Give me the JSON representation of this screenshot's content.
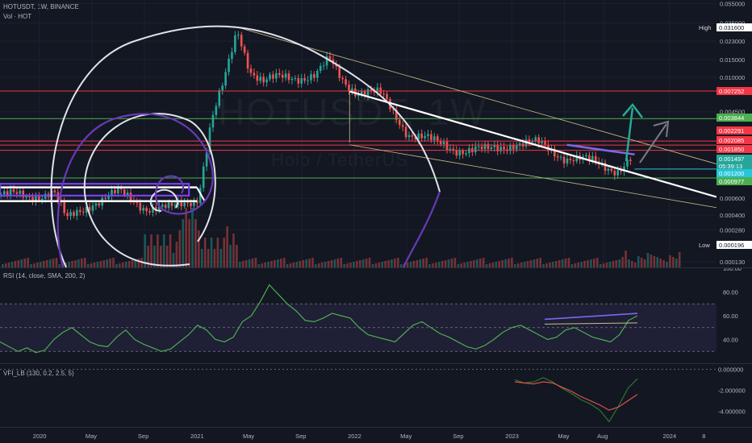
{
  "header": {
    "symbol_line": "HOTUSDT, 1W, BINANCE",
    "volume_label": "Vol · HOT",
    "rsi_label": "RSI (14, close, SMA, 200, 2)",
    "vfi_label": "VFI_LB (130, 0.2, 2.5, 5)"
  },
  "watermark": {
    "ticker": "HOTUSDT, 1W",
    "name": "Holo / TetherUS"
  },
  "colors": {
    "up": "#26a69a",
    "down": "#ef5350",
    "red_level": "#f23645",
    "green_level": "#4caf50",
    "fib_white": "#e0e3eb",
    "fib_purple": "#673ab7",
    "arrow_teal": "#22ab94",
    "arrow_gray": "#787b86",
    "rsi_line": "#4caf50",
    "rsi_divergence": "#7b68ee",
    "price_line": "#26c6da"
  },
  "chart_data": [
    {
      "type": "candlestick",
      "title": "HOTUSDT, 1W, BINANCE",
      "scale": "log",
      "x_ticks": [
        "2020",
        "May",
        "Sep",
        "2021",
        "May",
        "Sep",
        "2022",
        "May",
        "Sep",
        "2023",
        "May",
        "Aug",
        "2024",
        "8"
      ],
      "y_ticks": [
        "0.055000",
        "0.035000",
        "0.023000",
        "0.015000",
        "0.010000",
        "0.004500",
        "0.000600",
        "0.000400",
        "0.000280",
        "0.000130"
      ],
      "price_labels": [
        {
          "text": "High",
          "value": "0.031600"
        },
        {
          "text": "",
          "value": "0.007252"
        },
        {
          "text": "",
          "value": "0.003844"
        },
        {
          "text": "",
          "value": "0.002291"
        },
        {
          "text": "",
          "value": "0.002085"
        },
        {
          "text": "",
          "value": "0.001850"
        },
        {
          "text": "",
          "value": "0.001497"
        },
        {
          "text": "",
          "value": "05:39:13"
        },
        {
          "text": "",
          "value": "0.001200"
        },
        {
          "text": "",
          "value": "0.000977"
        },
        {
          "text": "Low",
          "value": "0.000196"
        }
      ],
      "horizontal_levels": [
        {
          "value": 0.007252,
          "color": "red"
        },
        {
          "value": 0.003844,
          "color": "green"
        },
        {
          "value": 0.002291,
          "color": "red"
        },
        {
          "value": 0.002085,
          "color": "red"
        },
        {
          "value": 0.00185,
          "color": "red"
        },
        {
          "value": 0.000977,
          "color": "green"
        }
      ],
      "close_path": [
        {
          "t": "2019-10",
          "v": 0.00066
        },
        {
          "t": "2019-12",
          "v": 0.00061
        },
        {
          "t": "2020-02",
          "v": 0.00072
        },
        {
          "t": "2020-03",
          "v": 0.00035
        },
        {
          "t": "2020-05",
          "v": 0.00055
        },
        {
          "t": "2020-07",
          "v": 0.00068
        },
        {
          "t": "2020-09",
          "v": 0.00049
        },
        {
          "t": "2020-11",
          "v": 0.00046
        },
        {
          "t": "2021-01",
          "v": 0.00062
        },
        {
          "t": "2021-02",
          "v": 0.0035
        },
        {
          "t": "2021-03",
          "v": 0.0088
        },
        {
          "t": "2021-04",
          "v": 0.03
        },
        {
          "t": "2021-05",
          "v": 0.012
        },
        {
          "t": "2021-06",
          "v": 0.009
        },
        {
          "t": "2021-08",
          "v": 0.01
        },
        {
          "t": "2021-10",
          "v": 0.0105
        },
        {
          "t": "2021-11",
          "v": 0.0145
        },
        {
          "t": "2021-12",
          "v": 0.0095
        },
        {
          "t": "2022-01",
          "v": 0.0075
        },
        {
          "t": "2022-03",
          "v": 0.0065
        },
        {
          "t": "2022-05",
          "v": 0.0028
        },
        {
          "t": "2022-07",
          "v": 0.0022
        },
        {
          "t": "2022-09",
          "v": 0.0019
        },
        {
          "t": "2022-11",
          "v": 0.0018
        },
        {
          "t": "2023-01",
          "v": 0.0022
        },
        {
          "t": "2023-03",
          "v": 0.0021
        },
        {
          "t": "2023-05",
          "v": 0.0016
        },
        {
          "t": "2023-07",
          "v": 0.0014
        },
        {
          "t": "2023-09",
          "v": 0.0012
        },
        {
          "t": "2023-10",
          "v": 0.0015
        }
      ]
    },
    {
      "type": "line",
      "title": "RSI (14, close, SMA, 200, 2)",
      "y_ticks": [
        "100.00",
        "80.00",
        "60.00",
        "40.00"
      ],
      "ylim": [
        20,
        100
      ],
      "bands": [
        30,
        50,
        70
      ],
      "series": [
        {
          "values": [
            38,
            34,
            30,
            33,
            29,
            31,
            40,
            46,
            50,
            44,
            38,
            35,
            34,
            42,
            48,
            40,
            36,
            33,
            30,
            32,
            38,
            44,
            52,
            48,
            40,
            38,
            42,
            55,
            60,
            72,
            86,
            78,
            70,
            64,
            56,
            55,
            58,
            62,
            60,
            58,
            50,
            44,
            42,
            40,
            38,
            45,
            52,
            55,
            50,
            45,
            42,
            38,
            34,
            32,
            35,
            40,
            46,
            50,
            52,
            48,
            44,
            40,
            42,
            48,
            50,
            46,
            42,
            40,
            38,
            44,
            56,
            60
          ]
        }
      ]
    },
    {
      "type": "line",
      "title": "VFI_LB (130, 0.2, 2.5, 5)",
      "y_ticks": [
        "0.000000",
        "-2.000000",
        "-4.000000"
      ],
      "ylim": [
        -5.5,
        0.5
      ],
      "series": [
        {
          "values": [
            -1.0,
            -1.3,
            -1.2,
            -0.8,
            -1.2,
            -1.8,
            -2.3,
            -2.9,
            -3.3,
            -3.9,
            -5.0,
            -3.5,
            -1.8,
            -0.9
          ]
        },
        {
          "values": [
            -1.2,
            -1.3,
            -1.4,
            -1.2,
            -1.3,
            -1.7,
            -2.1,
            -2.6,
            -3.0,
            -3.4,
            -3.9,
            -3.6,
            -3.0,
            -2.4
          ]
        }
      ]
    }
  ]
}
